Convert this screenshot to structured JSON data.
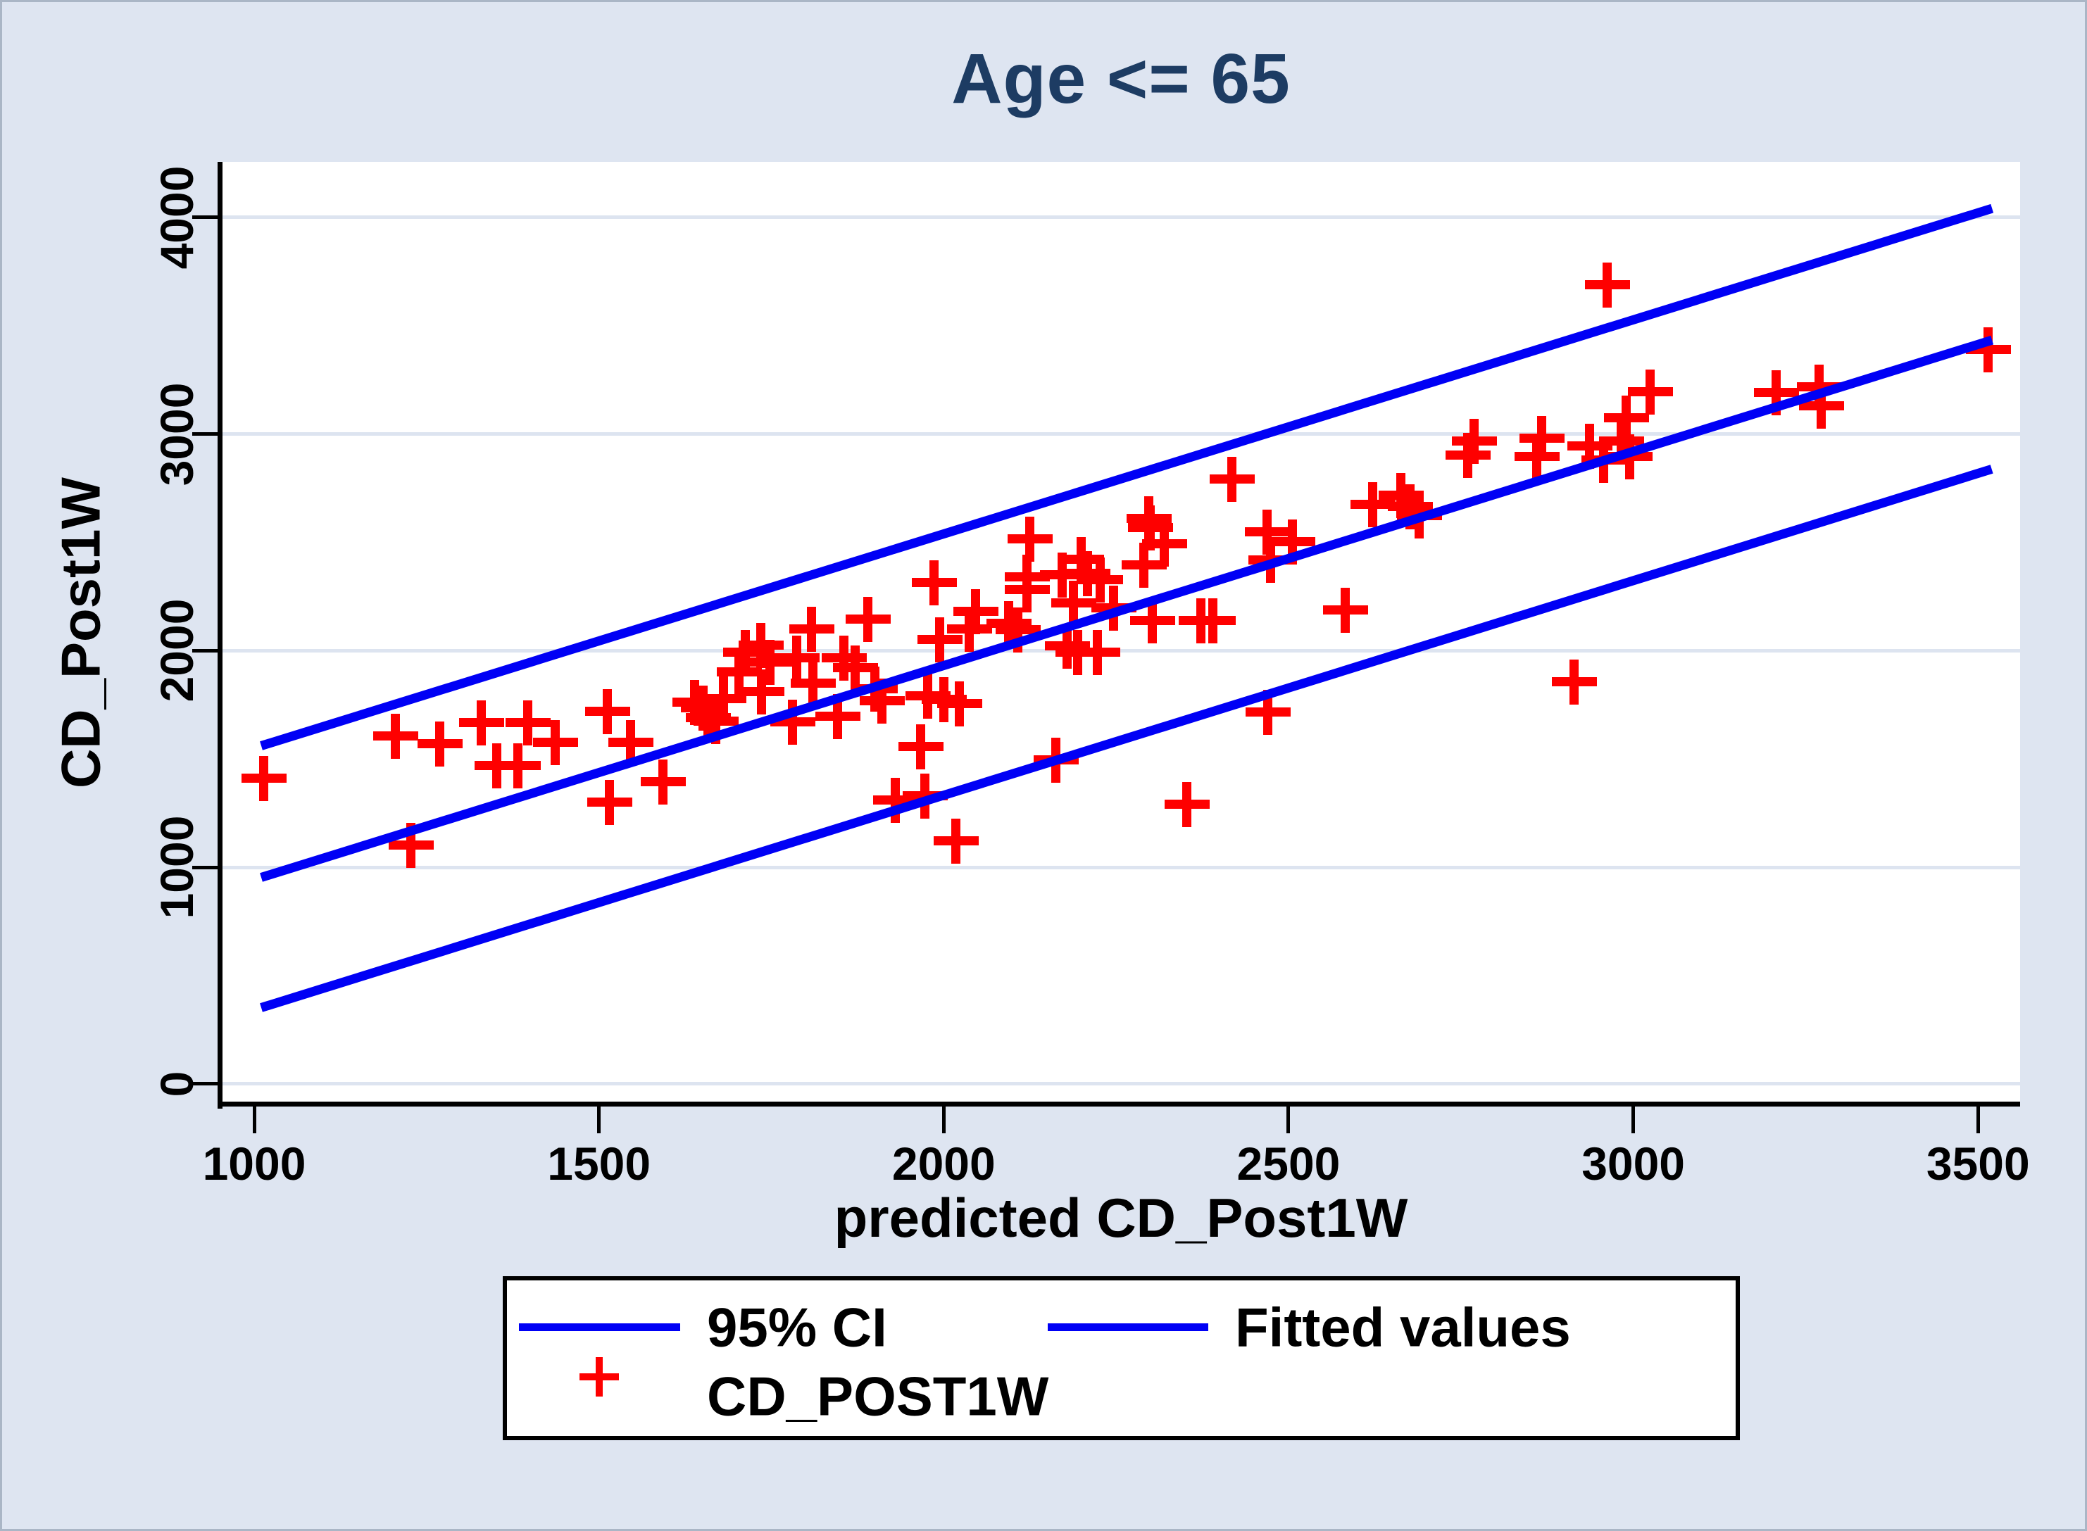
{
  "title": {
    "text": "Age <= 65"
  },
  "axes": {
    "x": {
      "label": "predicted CD_Post1W",
      "ticks": [
        "1000",
        "1500",
        "2000",
        "2500",
        "3000",
        "3500"
      ]
    },
    "y": {
      "label": "CD_Post1W",
      "ticks": [
        "0",
        "1000",
        "2000",
        "3000",
        "4000"
      ]
    }
  },
  "legend": {
    "items": [
      {
        "label": "95% CI",
        "swatch": "line"
      },
      {
        "label": "Fitted values",
        "swatch": "line"
      },
      {
        "label": "CD_POST1W",
        "swatch": "plus"
      }
    ]
  },
  "colors": {
    "background": "#dee5f1",
    "frame": "#aab6c6",
    "plot_background": "#ffffff",
    "gridline": "#dde4f0",
    "axis": "#000000",
    "text": "#000000",
    "title": "#1d3c63",
    "line": "#0000f5",
    "marker": "#fe0000",
    "legend_border": "#000000"
  },
  "chart_data": {
    "type": "scatter",
    "title": "Age <= 65",
    "xlabel": "predicted CD_Post1W",
    "ylabel": "CD_Post1W",
    "xlim": [
      953,
      3561
    ],
    "ylim": [
      -91,
      4256
    ],
    "x_ticks": [
      1000,
      1500,
      2000,
      2500,
      3000,
      3500
    ],
    "y_ticks": [
      0,
      1000,
      2000,
      3000,
      4000
    ],
    "grid": "horizontal",
    "legend_position": "bottom",
    "series": [
      {
        "name": "CD_POST1W",
        "type": "scatter",
        "marker": "plus",
        "points": [
          [
            1014,
            1410
          ],
          [
            1205,
            1605
          ],
          [
            1228,
            1100
          ],
          [
            1270,
            1570
          ],
          [
            1330,
            1668
          ],
          [
            1352,
            1470
          ],
          [
            1383,
            1470
          ],
          [
            1397,
            1668
          ],
          [
            1437,
            1575
          ],
          [
            1513,
            1718
          ],
          [
            1516,
            1300
          ],
          [
            1546,
            1575
          ],
          [
            1593,
            1395
          ],
          [
            1639,
            1760
          ],
          [
            1651,
            1735
          ],
          [
            1659,
            1690
          ],
          [
            1670,
            1673
          ],
          [
            1681,
            1776
          ],
          [
            1704,
            1901
          ],
          [
            1713,
            1990
          ],
          [
            1735,
            2025
          ],
          [
            1748,
            1945
          ],
          [
            1736,
            1811
          ],
          [
            1781,
            1670
          ],
          [
            1787,
            1965
          ],
          [
            1809,
            2100
          ],
          [
            1811,
            1850
          ],
          [
            1846,
            1695
          ],
          [
            1856,
            1965
          ],
          [
            1872,
            1920
          ],
          [
            1890,
            2145
          ],
          [
            1901,
            1821
          ],
          [
            1911,
            1766
          ],
          [
            1930,
            1310
          ],
          [
            1973,
            1330
          ],
          [
            1967,
            1555
          ],
          [
            1977,
            1790
          ],
          [
            2001,
            1775
          ],
          [
            2023,
            1755
          ],
          [
            1986,
            2312
          ],
          [
            1995,
            2050
          ],
          [
            2018,
            1122
          ],
          [
            2037,
            2100
          ],
          [
            2047,
            2180
          ],
          [
            2095,
            2125
          ],
          [
            2108,
            2095
          ],
          [
            2121,
            2340
          ],
          [
            2121,
            2280
          ],
          [
            2125,
            2515
          ],
          [
            2163,
            1495
          ],
          [
            2172,
            2348
          ],
          [
            2179,
            2020
          ],
          [
            2189,
            2220
          ],
          [
            2195,
            1990
          ],
          [
            2200,
            2422
          ],
          [
            2209,
            2355
          ],
          [
            2223,
            1992
          ],
          [
            2227,
            2327
          ],
          [
            2247,
            2196
          ],
          [
            2291,
            2394
          ],
          [
            2298,
            2610
          ],
          [
            2300,
            2566
          ],
          [
            2303,
            2138
          ],
          [
            2320,
            2492
          ],
          [
            2353,
            1290
          ],
          [
            2373,
            2138
          ],
          [
            2391,
            2138
          ],
          [
            2418,
            2792
          ],
          [
            2469,
            2548
          ],
          [
            2474,
            2417
          ],
          [
            2506,
            2500
          ],
          [
            2470,
            1715
          ],
          [
            2583,
            2186
          ],
          [
            2623,
            2675
          ],
          [
            2663,
            2717
          ],
          [
            2677,
            2665
          ],
          [
            2690,
            2623
          ],
          [
            2760,
            2900
          ],
          [
            2770,
            2966
          ],
          [
            2860,
            2895
          ],
          [
            2868,
            2980
          ],
          [
            2915,
            1855
          ],
          [
            2937,
            2945
          ],
          [
            2958,
            2880
          ],
          [
            2963,
            3688
          ],
          [
            2983,
            2965
          ],
          [
            2995,
            2895
          ],
          [
            2990,
            3075
          ],
          [
            3025,
            3193
          ],
          [
            3208,
            3190
          ],
          [
            3270,
            3217
          ],
          [
            3273,
            3130
          ],
          [
            3515,
            3390
          ]
        ]
      },
      {
        "name": "95% CI upper",
        "type": "line",
        "from": [
          1010,
          1560
        ],
        "to": [
          3520,
          4040
        ]
      },
      {
        "name": "Fitted values",
        "type": "line",
        "from": [
          1010,
          955
        ],
        "to": [
          3520,
          3435
        ]
      },
      {
        "name": "95% CI lower",
        "type": "line",
        "from": [
          1010,
          352
        ],
        "to": [
          3520,
          2838
        ]
      }
    ]
  }
}
